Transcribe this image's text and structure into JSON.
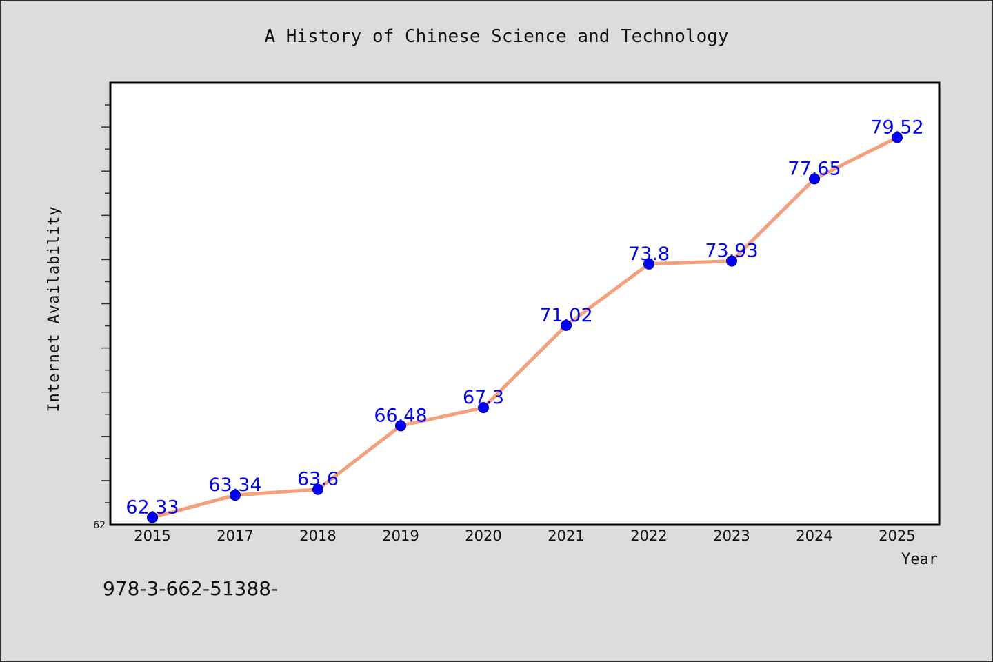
{
  "chart_data": {
    "type": "line",
    "title": "A History of Chinese Science and Technology",
    "xlabel": "Year",
    "ylabel": "Internet Availability",
    "categories": [
      "2015",
      "2017",
      "2018",
      "2019",
      "2020",
      "2021",
      "2022",
      "2023",
      "2024",
      "2025"
    ],
    "series": [
      {
        "values": [
          62.33,
          63.34,
          63.6,
          66.48,
          67.3,
          71.02,
          73.8,
          73.93,
          77.65,
          79.52
        ]
      }
    ],
    "data_labels": [
      "62.33",
      "63.34",
      "63.6",
      "66.48",
      "67.3",
      "71.02",
      "73.8",
      "73.93",
      "77.65",
      "79.52"
    ],
    "y_tick_labels": [
      "62"
    ],
    "ylim": [
      62,
      82
    ],
    "grid": false,
    "legend": "none",
    "colors": {
      "line": "#f4a07a",
      "marker": "#0000ff",
      "data_label": "#0000ff",
      "plot_bg": "#ffffff",
      "page_bg": "#dcdcdc"
    }
  },
  "footer_note": "978-3-662-51388-"
}
